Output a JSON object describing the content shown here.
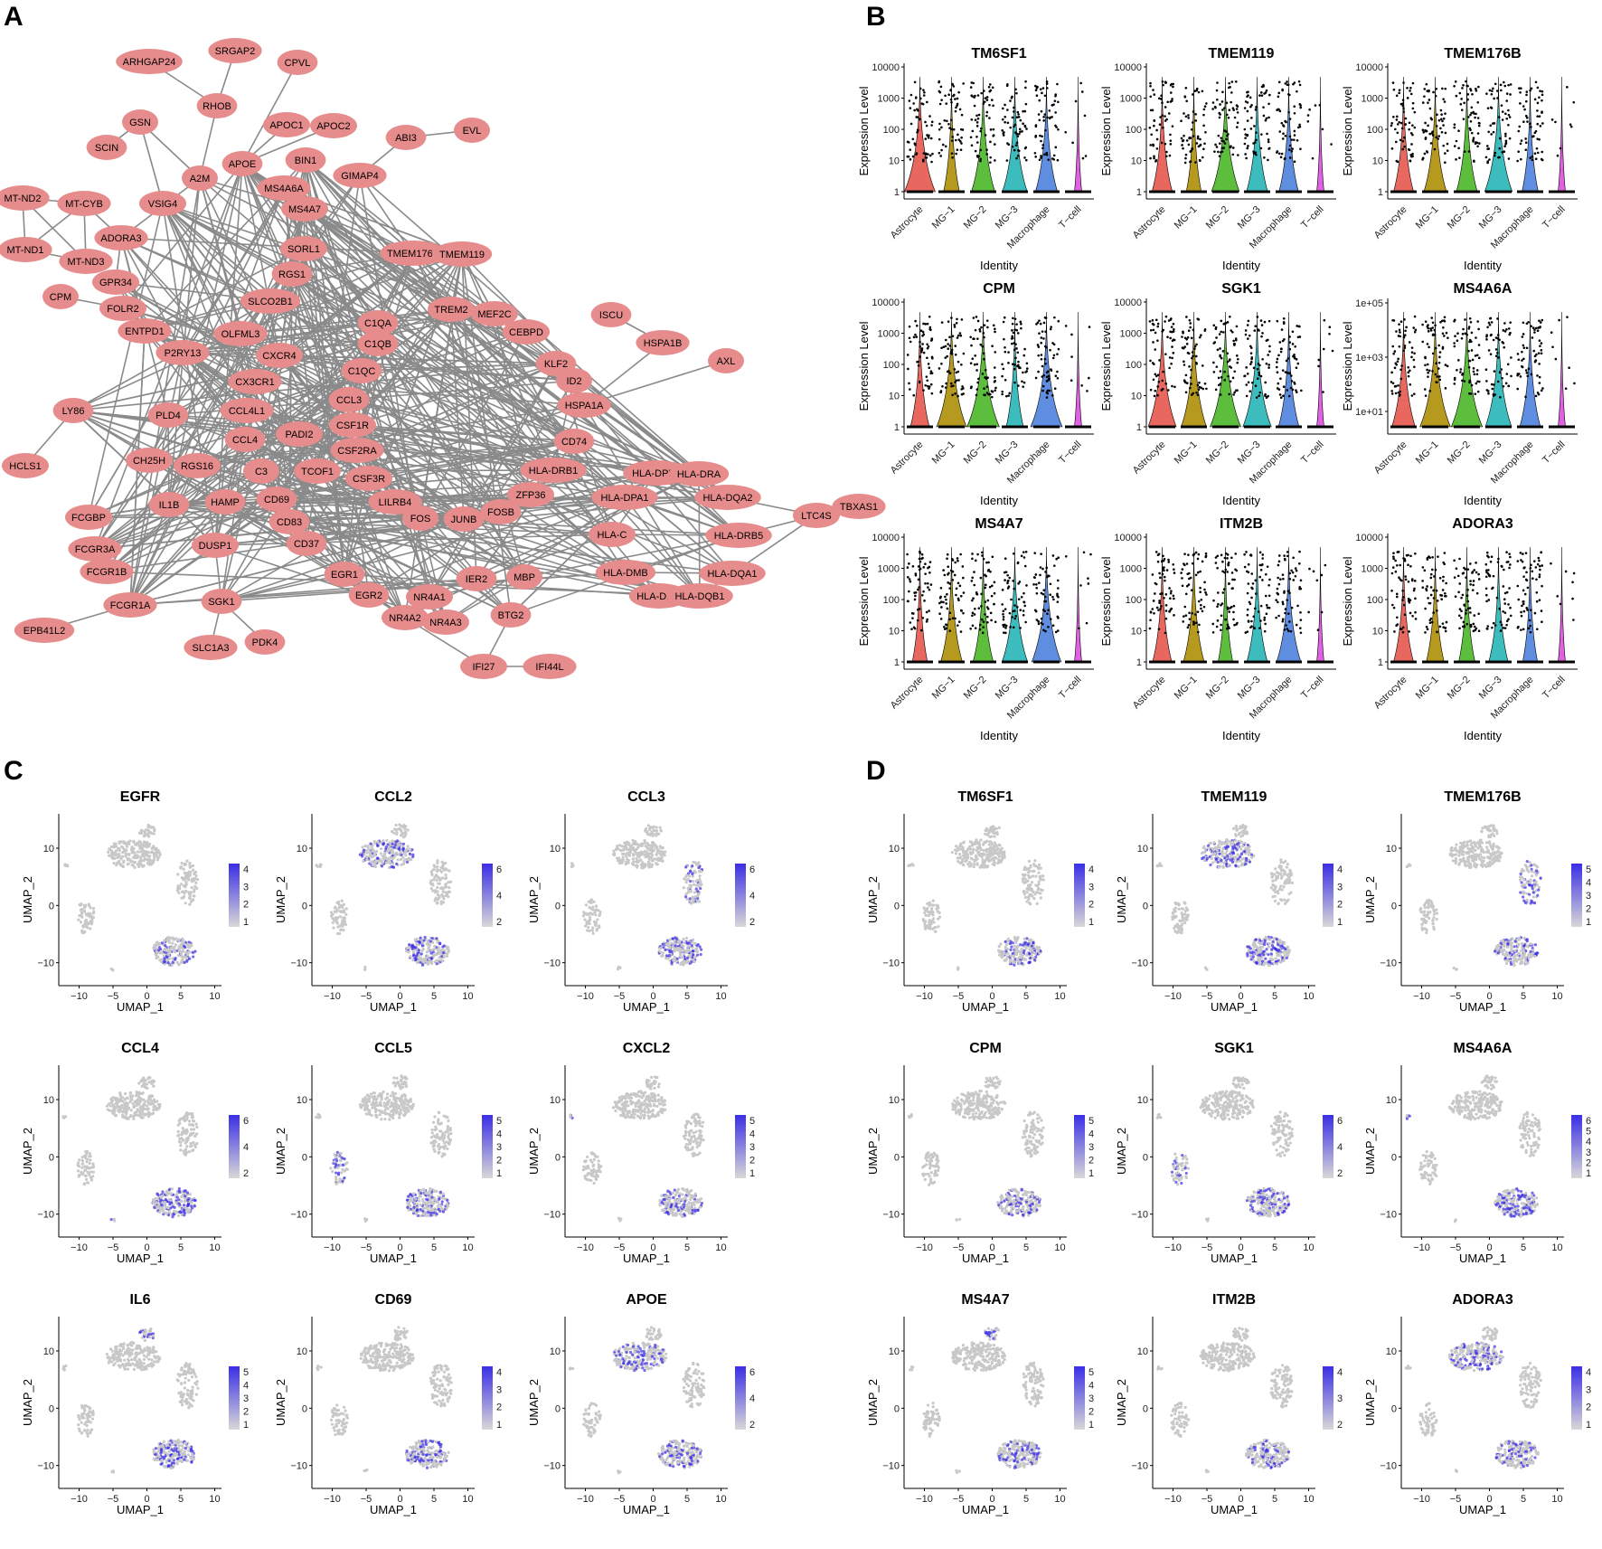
{
  "panels": {
    "A": "A",
    "B": "B",
    "C": "C",
    "D": "D"
  },
  "colors": {
    "node_fill": "#e78c8c",
    "edge": "#8a8a8a",
    "umap_grey": "#c8c8c8",
    "umap_high": "#3b2ee6",
    "umap_low": "#d8d8e6",
    "violin_astrocyte": "#e8685f",
    "violin_mg1": "#b59a1f",
    "violin_mg2": "#5dbd3c",
    "violin_mg3": "#3dbcbd",
    "violin_macrophage": "#5f8de0",
    "violin_tcell": "#e160e3"
  },
  "network": {
    "nodes": [
      "ARHGAP24",
      "SRGAP2",
      "CPVL",
      "RHOB",
      "GSN",
      "APOC1",
      "APOC2",
      "ABI3",
      "EVL",
      "SCIN",
      "A2M",
      "APOE",
      "BIN1",
      "MT-ND2",
      "MT-CYB",
      "VSIG4",
      "MS4A6A",
      "GIMAP4",
      "MS4A7",
      "ADORA3",
      "MT-ND1",
      "MT-ND3",
      "SORL1",
      "TMEM176B",
      "TMEM119",
      "GPR34",
      "RGS1",
      "CPM",
      "FOLR2",
      "SLCO2B1",
      "TREM2",
      "MEF2C",
      "ISCU",
      "ENTPD1",
      "OLFML3",
      "C1QA",
      "CEBPD",
      "HSPA1B",
      "P2RY13",
      "C1QB",
      "AXL",
      "CXCR4",
      "KLF2",
      "C1QC",
      "CX3CR1",
      "ID2",
      "LY86",
      "CCL3",
      "HSPA1A",
      "PLD4",
      "CCL4L1",
      "CSF1R",
      "CD74",
      "PADI2",
      "CCL4",
      "CSF2RA",
      "HCLS1",
      "CH25H",
      "RGS16",
      "HLA-DRB1",
      "HLA-DPB1",
      "HLA-DRA",
      "C3",
      "TCOF1",
      "CSF3R",
      "IL1B",
      "HAMP",
      "CD69",
      "ZFP36",
      "LILRB4",
      "HLA-DPA1",
      "HLA-DQA2",
      "TBXAS1",
      "FCGBP",
      "FOS",
      "JUNB",
      "FOSB",
      "CD83",
      "LTC4S",
      "FCGR3A",
      "CD37",
      "HLA-C",
      "HLA-DRB5",
      "DUSP1",
      "FCGR1B",
      "EGR1",
      "HLA-DMB",
      "IER2",
      "MBP",
      "HLA-DQA1",
      "EGR2",
      "NR4A1",
      "FCGR1A",
      "SGK1",
      "HLA-DMA",
      "HLA-DQB1",
      "BTG2",
      "NR4A2",
      "NR4A3",
      "EPB41L2",
      "PDK4",
      "SLC1A3",
      "IFI27",
      "IFI44L"
    ]
  },
  "violin": {
    "ylabel": "Expression Level",
    "xlabel": "Identity",
    "categories": [
      "Astrocyte",
      "MG−1",
      "MG−2",
      "MG−3",
      "Macrophage",
      "T−cell"
    ],
    "ticks_standard": [
      "1",
      "10",
      "100",
      "1000",
      "10000"
    ],
    "ticks_sci": [
      "1e+01",
      "1e+03",
      "1e+05"
    ],
    "plots": [
      {
        "title": "TM6SF1"
      },
      {
        "title": "TMEM119"
      },
      {
        "title": "TMEM176B"
      },
      {
        "title": "CPM"
      },
      {
        "title": "SGK1"
      },
      {
        "title": "MS4A6A"
      },
      {
        "title": "MS4A7"
      },
      {
        "title": "ITM2B"
      },
      {
        "title": "ADORA3"
      }
    ]
  },
  "umap": {
    "xlabel": "UMAP_1",
    "ylabel": "UMAP_2",
    "xticks": [
      "−10",
      "−5",
      "0",
      "5",
      "10"
    ],
    "yticks": [
      "10",
      "0",
      "−10"
    ],
    "panel_C": [
      {
        "title": "EGFR",
        "legend": [
          "4",
          "3",
          "2",
          "1"
        ]
      },
      {
        "title": "CCL2",
        "legend": [
          "6",
          "4",
          "2"
        ]
      },
      {
        "title": "CCL3",
        "legend": [
          "6",
          "4",
          "2"
        ]
      },
      {
        "title": "CCL4",
        "legend": [
          "6",
          "4",
          "2"
        ]
      },
      {
        "title": "CCL5",
        "legend": [
          "5",
          "4",
          "3",
          "2",
          "1"
        ]
      },
      {
        "title": "CXCL2",
        "legend": [
          "5",
          "4",
          "3",
          "2",
          "1"
        ]
      },
      {
        "title": "IL6",
        "legend": [
          "5",
          "4",
          "3",
          "2",
          "1"
        ]
      },
      {
        "title": "CD69",
        "legend": [
          "4",
          "3",
          "2",
          "1"
        ]
      },
      {
        "title": "APOE",
        "legend": [
          "6",
          "4",
          "2"
        ]
      }
    ],
    "panel_D": [
      {
        "title": "TM6SF1",
        "legend": [
          "4",
          "3",
          "2",
          "1"
        ]
      },
      {
        "title": "TMEM119",
        "legend": [
          "4",
          "3",
          "2",
          "1"
        ]
      },
      {
        "title": "TMEM176B",
        "legend": [
          "5",
          "4",
          "3",
          "2",
          "1"
        ]
      },
      {
        "title": "CPM",
        "legend": [
          "5",
          "4",
          "3",
          "2",
          "1"
        ]
      },
      {
        "title": "SGK1",
        "legend": [
          "6",
          "4",
          "2"
        ]
      },
      {
        "title": "MS4A6A",
        "legend": [
          "6",
          "5",
          "4",
          "3",
          "2",
          "1"
        ]
      },
      {
        "title": "MS4A7",
        "legend": [
          "5",
          "4",
          "3",
          "2",
          "1"
        ]
      },
      {
        "title": "ITM2B",
        "legend": [
          "4",
          "3",
          "2"
        ]
      },
      {
        "title": "ADORA3",
        "legend": [
          "4",
          "3",
          "2",
          "1"
        ]
      }
    ]
  },
  "chart_data": [
    {
      "type": "violin",
      "panel": "B",
      "categories": [
        "Astrocyte",
        "MG−1",
        "MG−2",
        "MG−3",
        "Macrophage",
        "T−cell"
      ],
      "yscale": "log",
      "genes": [
        "TM6SF1",
        "TMEM119",
        "TMEM176B",
        "CPM",
        "SGK1",
        "MS4A6A",
        "MS4A7",
        "ITM2B",
        "ADORA3"
      ]
    },
    {
      "type": "scatter",
      "panel": "C",
      "xlim": [
        -13,
        11
      ],
      "ylim": [
        -14,
        16
      ],
      "genes": [
        "EGFR",
        "CCL2",
        "CCL3",
        "CCL4",
        "CCL5",
        "CXCL2",
        "IL6",
        "CD69",
        "APOE"
      ]
    },
    {
      "type": "scatter",
      "panel": "D",
      "xlim": [
        -13,
        11
      ],
      "ylim": [
        -14,
        16
      ],
      "genes": [
        "TM6SF1",
        "TMEM119",
        "TMEM176B",
        "CPM",
        "SGK1",
        "MS4A6A",
        "MS4A7",
        "ITM2B",
        "ADORA3"
      ]
    }
  ]
}
